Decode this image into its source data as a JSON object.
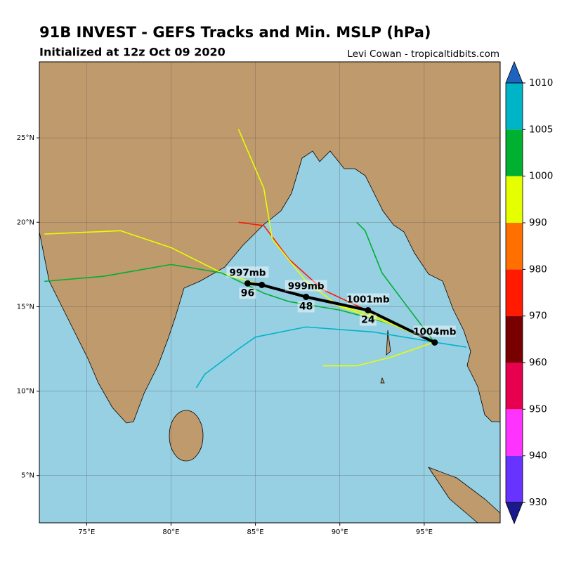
{
  "chart_data": {
    "type": "track-map",
    "title": "91B INVEST - GEFS Tracks and Min. MSLP (hPa)",
    "subtitle": "Initialized at 12z Oct 09 2020",
    "credit": "Levi Cowan - tropicaltidbits.com",
    "xlim": [
      72.2,
      99.5
    ],
    "ylim": [
      2.2,
      29.5
    ],
    "grid": true,
    "xticks": [
      {
        "value": 75,
        "label": "75°E"
      },
      {
        "value": 80,
        "label": "80°E"
      },
      {
        "value": 85,
        "label": "85°E"
      },
      {
        "value": 90,
        "label": "90°E"
      },
      {
        "value": 95,
        "label": "95°E"
      }
    ],
    "yticks": [
      {
        "value": 5,
        "label": "5°N"
      },
      {
        "value": 10,
        "label": "10°N"
      },
      {
        "value": 15,
        "label": "15°N"
      },
      {
        "value": 20,
        "label": "20°N"
      },
      {
        "value": 25,
        "label": "25°N"
      }
    ],
    "colorbar": {
      "boundaries": [
        930,
        940,
        950,
        960,
        970,
        980,
        990,
        1000,
        1005,
        1010
      ],
      "colors": [
        "#6633ff",
        "#ff33ff",
        "#e6004e",
        "#780000",
        "#ff1a00",
        "#ff7000",
        "#e6ff00",
        "#00b030",
        "#00b4c8"
      ],
      "under_color": "#1a1a8c",
      "over_color": "#1f63c0"
    },
    "tracks": [
      {
        "color": "#e6ff00",
        "lon": [
          95.6,
          92,
          88,
          85,
          83,
          80,
          77,
          72.5
        ],
        "lat": [
          12.9,
          14.5,
          15.6,
          16.4,
          17,
          18.5,
          19.5,
          19.3
        ]
      },
      {
        "color": "#00b030",
        "lon": [
          95.6,
          93,
          90,
          87,
          85.5,
          83,
          80,
          76,
          72.5
        ],
        "lat": [
          12.9,
          14,
          14.8,
          15.3,
          15.8,
          17,
          17.5,
          16.8,
          16.5
        ]
      },
      {
        "color": "#00b4c8",
        "lon": [
          95.6,
          92,
          88,
          85,
          84,
          82,
          81.5
        ],
        "lat": [
          12.9,
          13.5,
          13.8,
          13.2,
          12.5,
          11,
          10.2
        ]
      },
      {
        "color": "#ff1a00",
        "lon": [
          95.6,
          92,
          89,
          87,
          85.5,
          84
        ],
        "lat": [
          12.9,
          14.6,
          16,
          17.8,
          19.8,
          20
        ]
      },
      {
        "color": "#e6ff00",
        "lon": [
          95.6,
          93,
          90,
          88,
          86,
          85.5,
          84
        ],
        "lat": [
          12.9,
          14,
          15,
          16.5,
          19,
          22,
          25.5
        ]
      },
      {
        "color": "#00b030",
        "lon": [
          95.6,
          94,
          92.5,
          91.5,
          91
        ],
        "lat": [
          12.9,
          15,
          17,
          19.5,
          20
        ]
      },
      {
        "color": "#e6ff00",
        "lon": [
          95.6,
          93,
          91,
          89
        ],
        "lat": [
          12.9,
          12,
          11.5,
          11.5
        ]
      },
      {
        "color": "#00b4c8",
        "lon": [
          95.6,
          97.5
        ],
        "lat": [
          12.9,
          12.6
        ]
      }
    ],
    "mean_track": {
      "color": "#000000",
      "lon": [
        95.62,
        91.67,
        88.0,
        85.38,
        84.54
      ],
      "lat": [
        12.88,
        14.79,
        15.58,
        16.29,
        16.38
      ],
      "mslp": [
        1004,
        1001,
        999,
        null,
        997
      ],
      "mslp_labels": [
        "1004mb",
        "1001mb",
        "999mb",
        null,
        "997mb"
      ],
      "hours": [
        null,
        24,
        48,
        null,
        96
      ]
    }
  }
}
